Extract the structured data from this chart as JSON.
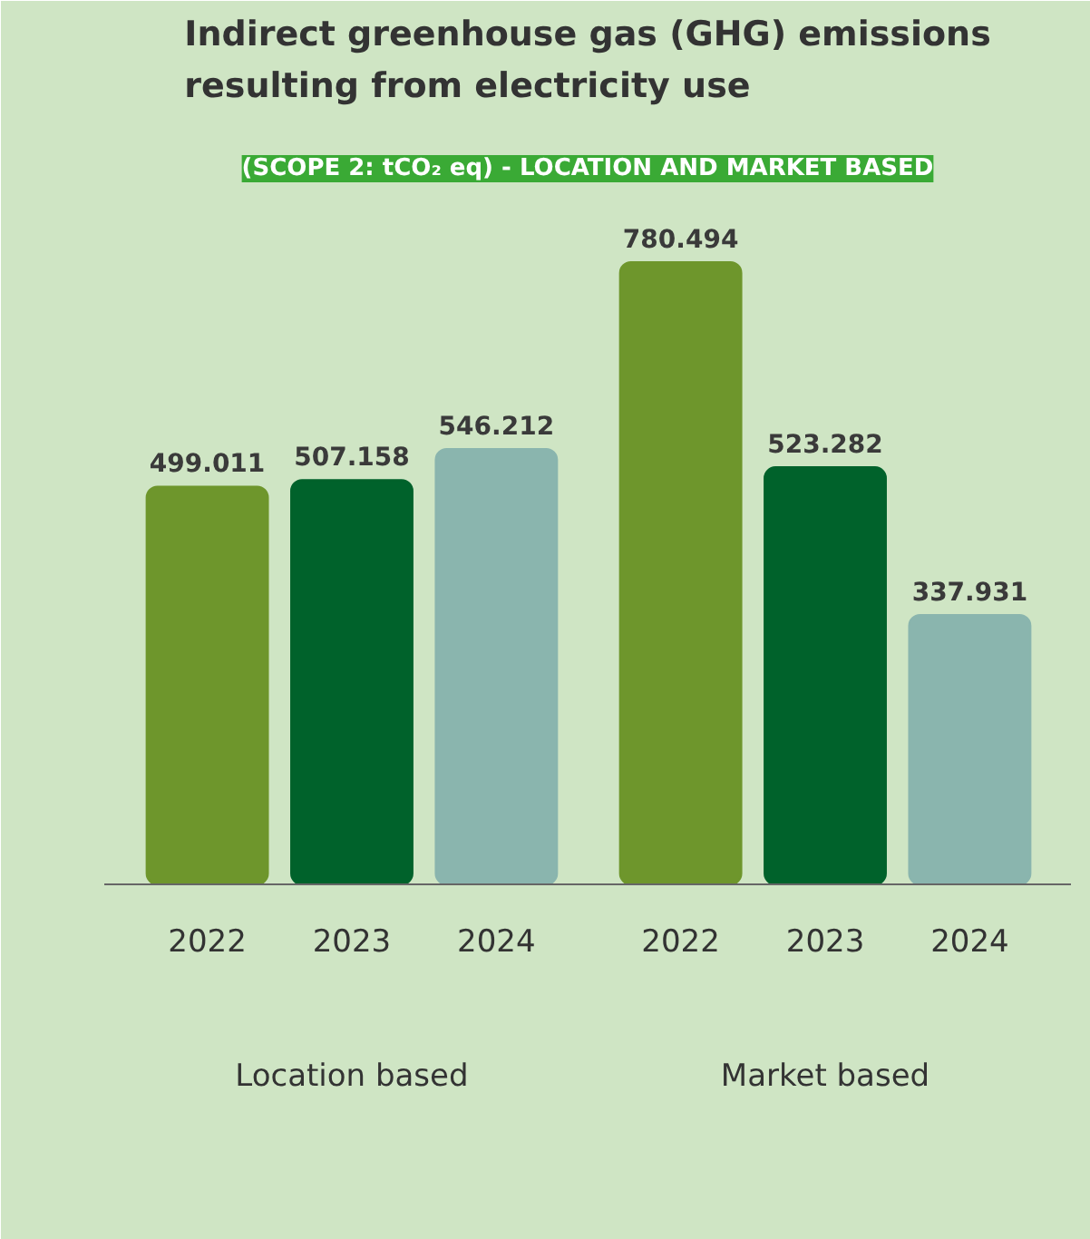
{
  "chart_data": {
    "type": "bar",
    "title": "Indirect greenhouse gas (GHG) emissions resulting from electricity use",
    "subtitle": "(SCOPE 2: tCO₂ eq) - LOCATION AND MARKET BASED",
    "categories": [
      "2022",
      "2023",
      "2024",
      "2022",
      "2023",
      "2024"
    ],
    "values": [
      499.011,
      507.158,
      546.212,
      780.494,
      523.282,
      337.931
    ],
    "colors": [
      "#6e962c",
      "#00622b",
      "#8ab5ae",
      "#6e962c",
      "#00622b",
      "#8ab5ae"
    ],
    "value_labels": [
      "499.011",
      "507.158",
      "546.212",
      "780.494",
      "523.282",
      "337.931"
    ],
    "annotations": [
      "Location based",
      "Market based"
    ],
    "grid": false
  }
}
